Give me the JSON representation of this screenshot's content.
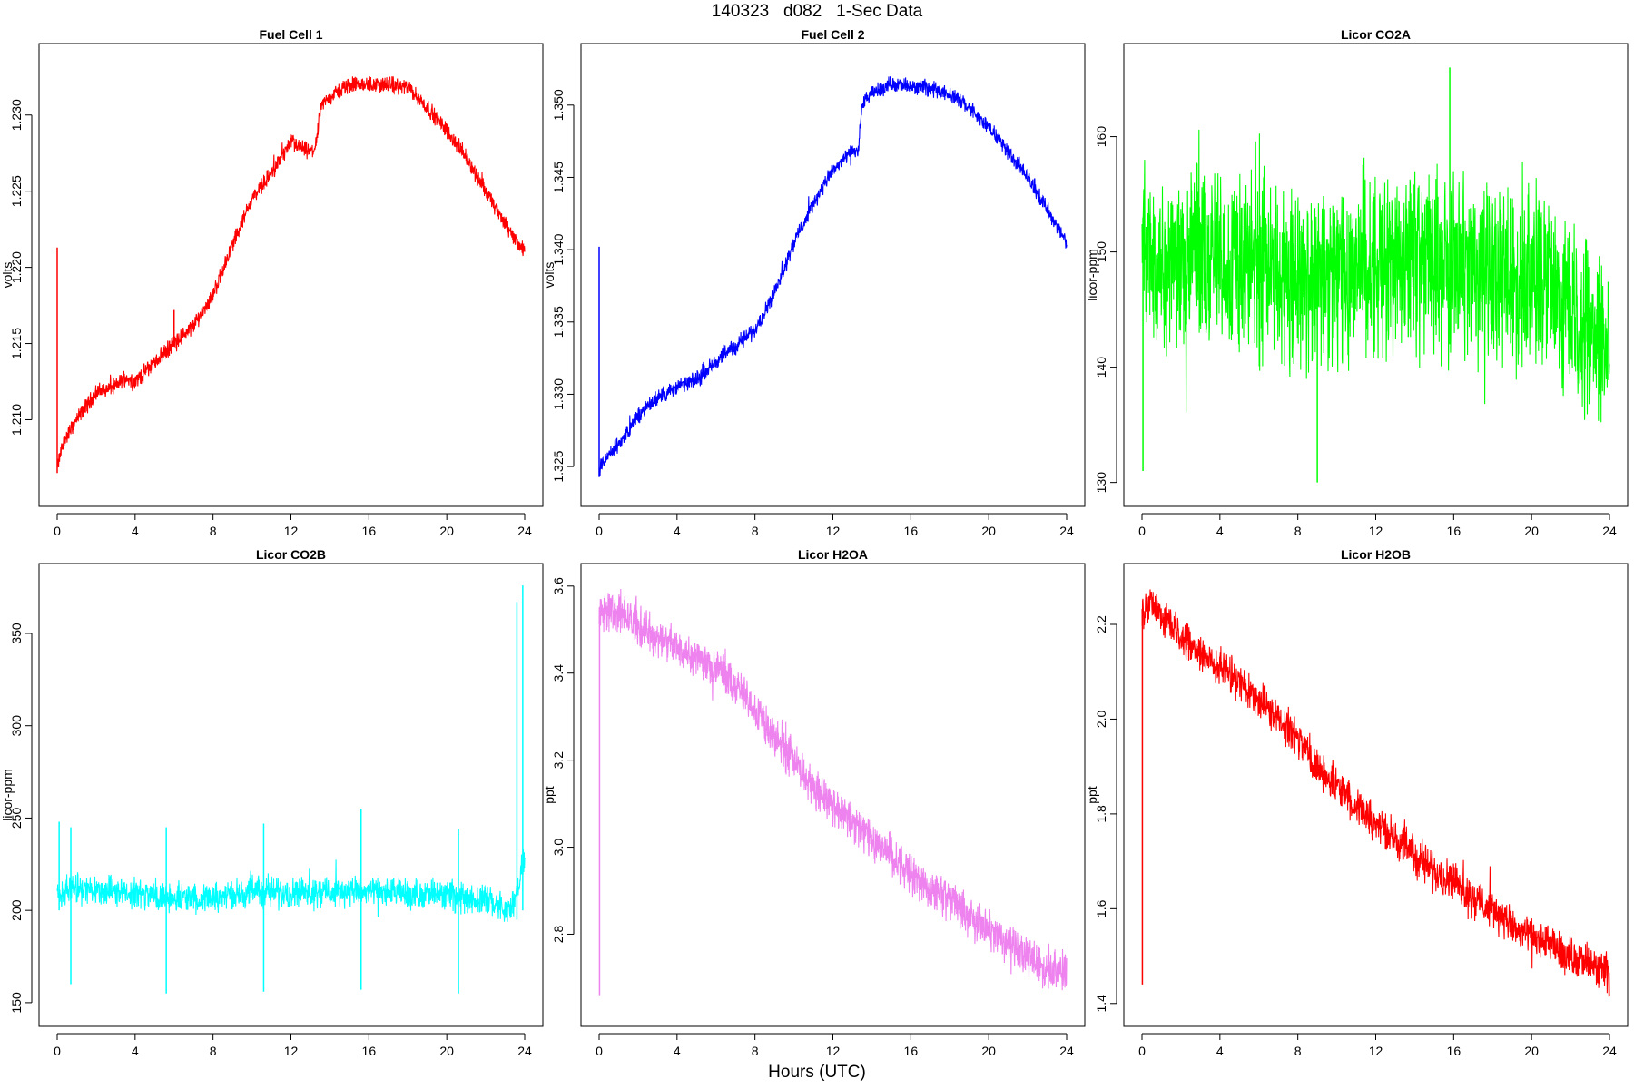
{
  "header": {
    "title": "140323   d082   1-Sec Data"
  },
  "footer": {
    "xlabel": "Hours (UTC)"
  },
  "chart_data": [
    {
      "type": "line",
      "title": "Fuel Cell 1",
      "ylabel": "volts",
      "color": "#ff0000",
      "xlim": [
        0,
        24
      ],
      "ylim": [
        1.2055,
        1.2335
      ],
      "x_ticks": [
        0,
        4,
        8,
        12,
        16,
        20,
        24
      ],
      "y_ticks": [
        1.21,
        1.215,
        1.22,
        1.225,
        1.23
      ],
      "y_tick_labels": [
        "1.210",
        "1.215",
        "1.220",
        "1.225",
        "1.230"
      ],
      "noise": 0.0004,
      "spikes": [
        [
          0.0,
          1.2065,
          1.2213
        ],
        [
          6.0,
          1.2148,
          1.2172
        ]
      ],
      "series": [
        {
          "x": [
            0,
            0.3,
            1,
            2,
            3,
            3.5,
            4,
            5,
            6,
            7,
            8,
            9,
            10,
            11,
            12,
            13,
            13.3,
            13.5,
            14,
            15,
            16,
            17,
            18,
            19,
            20,
            21,
            22,
            23,
            24
          ],
          "y": [
            1.2068,
            1.2085,
            1.21,
            1.2118,
            1.2122,
            1.2128,
            1.2125,
            1.2138,
            1.215,
            1.2162,
            1.2182,
            1.2215,
            1.2245,
            1.2262,
            1.2282,
            1.2275,
            1.228,
            1.2305,
            1.2312,
            1.232,
            1.232,
            1.232,
            1.2318,
            1.2305,
            1.229,
            1.2272,
            1.225,
            1.2228,
            1.221
          ]
        }
      ]
    },
    {
      "type": "line",
      "title": "Fuel Cell 2",
      "ylabel": "volts",
      "color": "#0000ff",
      "xlim": [
        0,
        24
      ],
      "ylim": [
        1.3235,
        1.353
      ],
      "x_ticks": [
        0,
        4,
        8,
        12,
        16,
        20,
        24
      ],
      "y_ticks": [
        1.325,
        1.33,
        1.335,
        1.34,
        1.345,
        1.35
      ],
      "y_tick_labels": [
        "1.325",
        "1.330",
        "1.335",
        "1.340",
        "1.345",
        "1.350"
      ],
      "noise": 0.0004,
      "spikes": [
        [
          0.0,
          1.3243,
          1.3402
        ]
      ],
      "series": [
        {
          "x": [
            0,
            0.3,
            1,
            2,
            3,
            4,
            5,
            6,
            7,
            8,
            9,
            10,
            11,
            12,
            13,
            13.3,
            13.5,
            14,
            15,
            16,
            17,
            18,
            19,
            20,
            21,
            22,
            23,
            24
          ],
          "y": [
            1.3245,
            1.3255,
            1.3265,
            1.3285,
            1.3298,
            1.3305,
            1.331,
            1.3323,
            1.3333,
            1.3345,
            1.337,
            1.3405,
            1.3432,
            1.3455,
            1.3468,
            1.3468,
            1.35,
            1.3508,
            1.3515,
            1.3512,
            1.3512,
            1.3508,
            1.3498,
            1.3485,
            1.3468,
            1.345,
            1.3428,
            1.3405
          ]
        }
      ]
    },
    {
      "type": "line",
      "title": "Licor CO2A",
      "ylabel": "licor-ppm",
      "color": "#00ff00",
      "xlim": [
        0,
        24
      ],
      "ylim": [
        129.5,
        166.5
      ],
      "x_ticks": [
        0,
        4,
        8,
        12,
        16,
        20,
        24
      ],
      "y_ticks": [
        130,
        140,
        150,
        160
      ],
      "y_tick_labels": [
        "130",
        "140",
        "150",
        "160"
      ],
      "noise": 6.0,
      "spikes": [
        [
          0.05,
          131.0,
          153.0
        ],
        [
          15.8,
          142.0,
          166.0
        ],
        [
          9.0,
          130.0,
          150.0
        ]
      ],
      "series": [
        {
          "x": [
            0,
            2,
            4,
            6,
            8,
            10,
            12,
            14,
            16,
            18,
            20,
            22,
            24
          ],
          "y": [
            149.5,
            149.5,
            149.2,
            148.8,
            148.0,
            148.2,
            149.0,
            149.2,
            148.8,
            148.2,
            147.5,
            145.5,
            142.0
          ]
        }
      ]
    },
    {
      "type": "line",
      "title": "Licor CO2B",
      "ylabel": "licor-ppm",
      "color": "#00ffff",
      "xlim": [
        0,
        24
      ],
      "ylim": [
        147,
        378
      ],
      "x_ticks": [
        0,
        4,
        8,
        12,
        16,
        20,
        24
      ],
      "y_ticks": [
        150,
        200,
        250,
        300,
        350
      ],
      "y_tick_labels": [
        "150",
        "200",
        "250",
        "300",
        "350"
      ],
      "noise": 6.0,
      "spikes": [
        [
          0.1,
          200.0,
          248.0
        ],
        [
          0.7,
          160.0,
          245.0
        ],
        [
          5.6,
          155.0,
          245.0
        ],
        [
          10.6,
          156.0,
          247.0
        ],
        [
          15.6,
          157.0,
          255.0
        ],
        [
          20.6,
          155.0,
          244.0
        ],
        [
          23.6,
          195.0,
          367.0
        ],
        [
          23.9,
          200.0,
          376.0
        ]
      ],
      "series": [
        {
          "x": [
            0,
            1,
            2,
            4,
            6,
            8,
            10,
            12,
            14,
            16,
            18,
            20,
            22,
            23,
            23.5,
            24
          ],
          "y": [
            209,
            212,
            211,
            209,
            207,
            207,
            210,
            210,
            210,
            210,
            209,
            208,
            206,
            200,
            205,
            230
          ]
        }
      ]
    },
    {
      "type": "line",
      "title": "Licor H2OA",
      "ylabel": "ppt",
      "color": "#ee82ee",
      "xlim": [
        0,
        24
      ],
      "ylim": [
        2.63,
        3.61
      ],
      "x_ticks": [
        0,
        4,
        8,
        12,
        16,
        20,
        24
      ],
      "y_ticks": [
        2.8,
        3.0,
        3.2,
        3.4,
        3.6
      ],
      "y_tick_labels": [
        "2.8",
        "3.0",
        "3.2",
        "3.4",
        "3.6"
      ],
      "noise": 0.035,
      "spikes": [
        [
          0.02,
          2.66,
          3.55
        ]
      ],
      "series": [
        {
          "x": [
            0,
            0.5,
            1,
            2,
            3,
            4,
            5,
            6,
            7,
            8,
            9,
            10,
            11,
            12,
            13,
            14,
            15,
            16,
            17,
            18,
            19,
            20,
            21,
            22,
            23,
            24
          ],
          "y": [
            3.53,
            3.55,
            3.54,
            3.51,
            3.48,
            3.46,
            3.44,
            3.41,
            3.37,
            3.32,
            3.25,
            3.2,
            3.14,
            3.1,
            3.06,
            3.02,
            2.98,
            2.94,
            2.9,
            2.88,
            2.84,
            2.81,
            2.78,
            2.75,
            2.72,
            2.71
          ]
        }
      ]
    },
    {
      "type": "line",
      "title": "Licor H2OB",
      "ylabel": "ppt",
      "color": "#ff0000",
      "xlim": [
        0,
        24
      ],
      "ylim": [
        1.39,
        2.29
      ],
      "x_ticks": [
        0,
        4,
        8,
        12,
        16,
        20,
        24
      ],
      "y_ticks": [
        1.4,
        1.6,
        1.8,
        2.0,
        2.2
      ],
      "y_tick_labels": [
        "1.4",
        "1.6",
        "1.8",
        "2.0",
        "2.2"
      ],
      "noise": 0.03,
      "spikes": [
        [
          0.02,
          1.44,
          2.23
        ]
      ],
      "series": [
        {
          "x": [
            0,
            0.5,
            1,
            2,
            3,
            4,
            5,
            6,
            7,
            8,
            9,
            10,
            11,
            12,
            13,
            14,
            15,
            16,
            17,
            18,
            19,
            20,
            21,
            22,
            23,
            24
          ],
          "y": [
            2.22,
            2.24,
            2.22,
            2.18,
            2.14,
            2.11,
            2.08,
            2.04,
            2.0,
            1.96,
            1.9,
            1.86,
            1.82,
            1.78,
            1.75,
            1.71,
            1.68,
            1.66,
            1.62,
            1.6,
            1.56,
            1.54,
            1.52,
            1.5,
            1.48,
            1.46
          ]
        }
      ]
    }
  ]
}
